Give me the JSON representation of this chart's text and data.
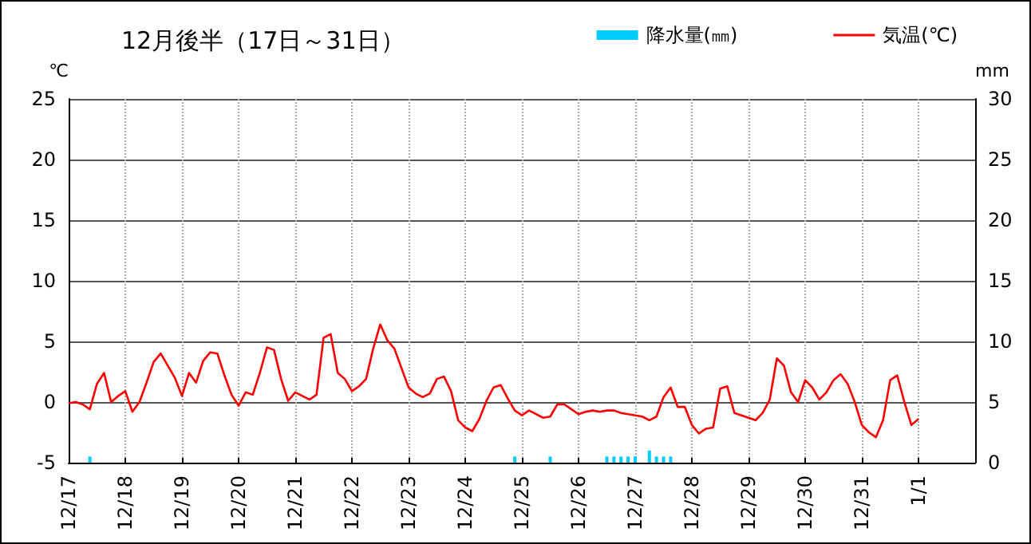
{
  "chart_data": {
    "type": "line",
    "title": "12月後半（17日～31日）",
    "ylabel": "℃",
    "y2label": "mm",
    "categories": [
      "12/17",
      null,
      null,
      null,
      null,
      null,
      null,
      null,
      "12/18",
      null,
      null,
      null,
      null,
      null,
      null,
      null,
      "12/19",
      null,
      null,
      null,
      null,
      null,
      null,
      null,
      "12/20",
      null,
      null,
      null,
      null,
      null,
      null,
      null,
      "12/21",
      null,
      null,
      null,
      null,
      null,
      null,
      null,
      "12/22",
      null,
      null,
      null,
      null,
      null,
      null,
      null,
      "12/23",
      null,
      null,
      null,
      null,
      null,
      null,
      null,
      "12/24",
      null,
      null,
      null,
      null,
      null,
      null,
      null,
      "12/25",
      null,
      null,
      null,
      null,
      null,
      null,
      null,
      "12/26",
      null,
      null,
      null,
      null,
      null,
      null,
      null,
      "12/27",
      null,
      null,
      null,
      null,
      null,
      null,
      null,
      "12/28",
      null,
      null,
      null,
      null,
      null,
      null,
      null,
      "12/29",
      null,
      null,
      null,
      null,
      null,
      null,
      null,
      "12/30",
      null,
      null,
      null,
      null,
      null,
      null,
      null,
      "12/31",
      null,
      null,
      null,
      null,
      null,
      null,
      null,
      "1/1",
      null,
      null,
      null,
      null,
      null,
      null,
      null,
      null
    ],
    "ylim": [
      -5,
      25
    ],
    "yticks": [
      -5,
      0,
      5,
      10,
      15,
      20,
      25
    ],
    "y2lim": [
      0,
      30
    ],
    "y2ticks": [
      0,
      5,
      10,
      15,
      20,
      25,
      30
    ],
    "grid": true,
    "legend": "top right",
    "marker": "none",
    "line_style": "solid",
    "series": [
      {
        "name": "降水量(㎜)",
        "type": "bar",
        "axis": "y2",
        "color": "#00ccff",
        "values": [
          null,
          null,
          null,
          0.5,
          null,
          null,
          null,
          null,
          null,
          null,
          null,
          null,
          null,
          null,
          null,
          null,
          null,
          null,
          null,
          null,
          null,
          null,
          null,
          null,
          null,
          null,
          null,
          null,
          null,
          null,
          null,
          null,
          null,
          null,
          null,
          null,
          null,
          null,
          null,
          null,
          null,
          null,
          null,
          null,
          null,
          null,
          null,
          null,
          null,
          null,
          null,
          null,
          null,
          null,
          null,
          null,
          null,
          null,
          null,
          null,
          null,
          null,
          null,
          0.5,
          null,
          null,
          null,
          null,
          0.5,
          null,
          null,
          null,
          null,
          null,
          null,
          null,
          0.5,
          0.5,
          0.5,
          0.5,
          0.5,
          null,
          1.0,
          0.5,
          0.5,
          0.5,
          null,
          null,
          null,
          null,
          null,
          null,
          null,
          null,
          null,
          null,
          null,
          null,
          null,
          null,
          null,
          null,
          null,
          null,
          null,
          null,
          null,
          null,
          null,
          null,
          null,
          null,
          null,
          null,
          null,
          null,
          null,
          null,
          null,
          null,
          null,
          null,
          null,
          null,
          null,
          null,
          null,
          null,
          null
        ]
      },
      {
        "name": "気温(℃)",
        "color": "#ff0000",
        "values": [
          -0.1,
          0,
          -0.2,
          -0.6,
          1.5,
          2.4,
          0,
          0.5,
          0.9,
          -0.8,
          0.0,
          1.6,
          3.3,
          4.0,
          3.0,
          2.0,
          0.5,
          2.4,
          1.6,
          3.4,
          4.1,
          4.0,
          2.2,
          0.6,
          -0.3,
          0.8,
          0.6,
          2.4,
          4.5,
          4.3,
          1.9,
          0.1,
          0.8,
          0.5,
          0.2,
          0.6,
          5.3,
          5.6,
          2.4,
          1.9,
          0.9,
          1.3,
          1.9,
          4.4,
          6.4,
          5.1,
          4.4,
          2.8,
          1.2,
          0.7,
          0.4,
          0.7,
          1.9,
          2.1,
          0.9,
          -1.5,
          -2.1,
          -2.4,
          -1.4,
          0.1,
          1.2,
          1.4,
          0.3,
          -0.7,
          -1.1,
          -0.7,
          -1.0,
          -1.3,
          -1.2,
          -0.2,
          -0.2,
          -0.6,
          -1.0,
          -0.8,
          -0.7,
          -0.8,
          -0.7,
          -0.7,
          -0.9,
          -1.0,
          -1.1,
          -1.2,
          -1.5,
          -1.2,
          0.4,
          1.2,
          -0.4,
          -0.4,
          -1.9,
          -2.6,
          -2.2,
          -2.1,
          1.1,
          1.3,
          -0.9,
          -1.1,
          -1.3,
          -1.5,
          -0.9,
          0.2,
          3.6,
          3.0,
          0.8,
          0,
          1.8,
          1.2,
          0.2,
          0.8,
          1.8,
          2.3,
          1.5,
          0,
          -1.9,
          -2.5,
          -2.9,
          -1.5,
          1.8,
          2.2,
          0.0,
          -1.9,
          -1.4,
          null,
          null,
          null,
          null,
          null,
          null,
          null,
          null
        ]
      }
    ]
  }
}
